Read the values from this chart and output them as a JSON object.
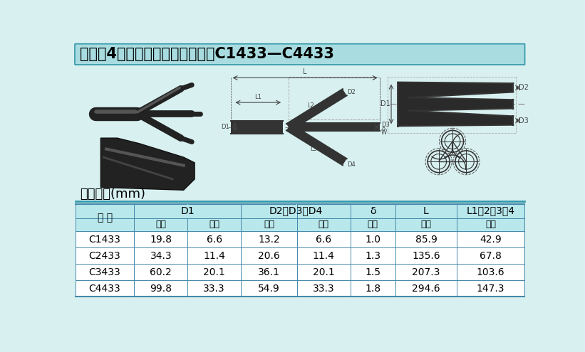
{
  "title": "柔软型4开口（一对三）分叉套：C1433—C4433",
  "size_label": "尺寸表：(mm)",
  "bg_color": "#d8f0f0",
  "title_bg_color": "#a8dce0",
  "table_header_bg": "#b8e8ec",
  "table_row_bg_white": "#ffffff",
  "table_border_color": "#4488aa",
  "rows": [
    [
      "C1433",
      "19.8",
      "6.6",
      "13.2",
      "6.6",
      "1.0",
      "85.9",
      "42.9"
    ],
    [
      "C2433",
      "34.3",
      "11.4",
      "20.6",
      "11.4",
      "1.3",
      "135.6",
      "67.8"
    ],
    [
      "C3433",
      "60.2",
      "20.1",
      "36.1",
      "20.1",
      "1.5",
      "207.3",
      "103.6"
    ],
    [
      "C4433",
      "99.8",
      "33.3",
      "54.9",
      "33.3",
      "1.8",
      "294.6",
      "147.3"
    ]
  ],
  "span_configs": [
    [
      "D1",
      1,
      3
    ],
    [
      "D2、D3、D4",
      3,
      5
    ],
    [
      "δ",
      5,
      6
    ],
    [
      "L",
      6,
      7
    ],
    [
      "L1、2、3、4",
      7,
      8
    ]
  ],
  "sub_headers": [
    "缩前",
    "缩后",
    "缩前",
    "缩后",
    "缩前",
    "缩后",
    "缩后"
  ],
  "col_widths_rel": [
    1.05,
    0.95,
    0.95,
    1.0,
    0.95,
    0.8,
    1.1,
    1.2
  ]
}
